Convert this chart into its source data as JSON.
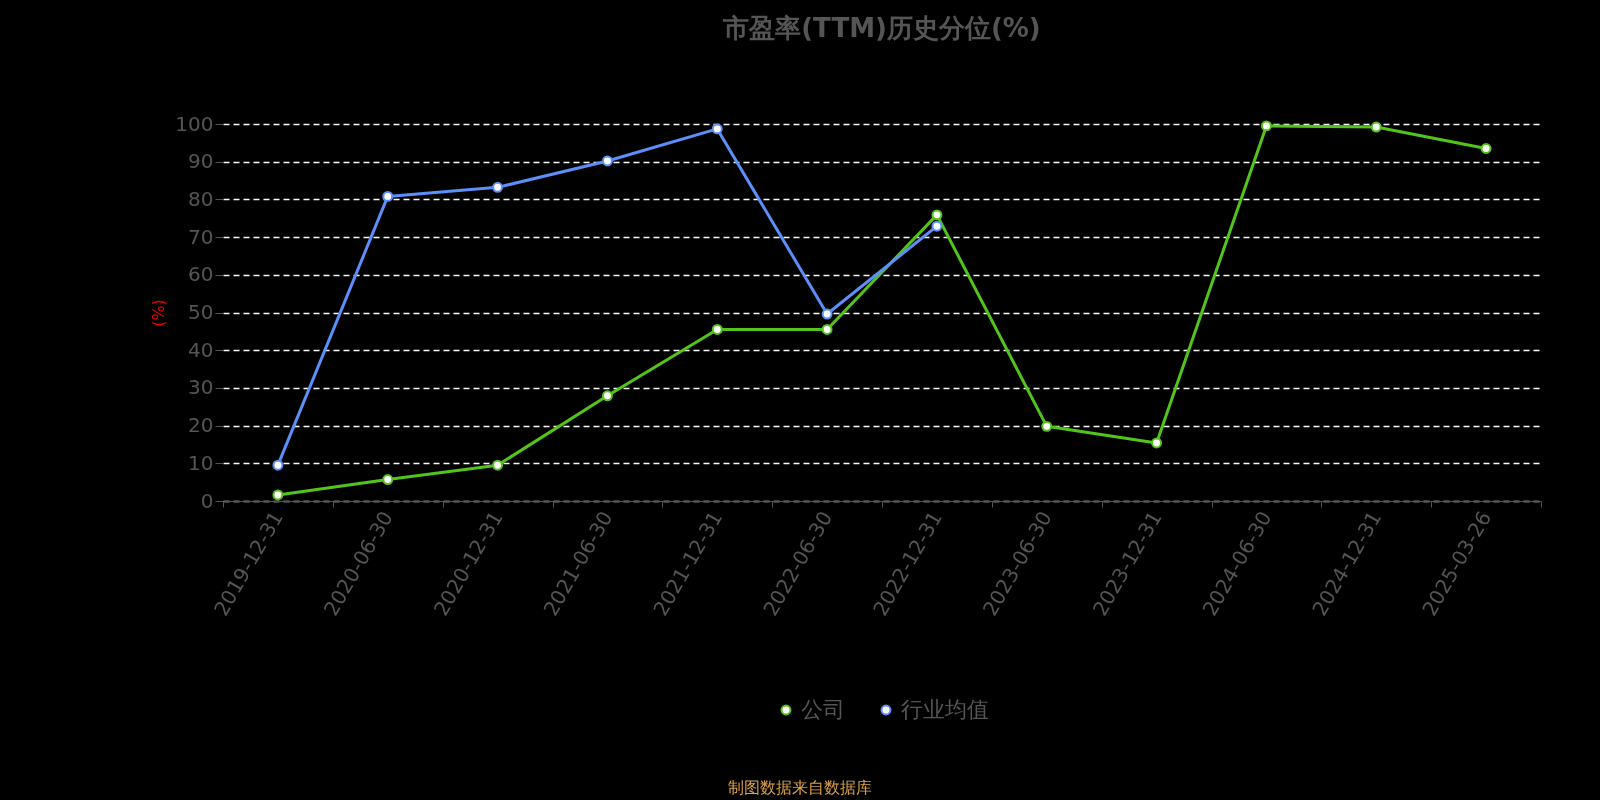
{
  "chart_data": {
    "type": "line",
    "title": "市盈率(TTM)历史分位(%)",
    "ylabel": "(%)",
    "categories": [
      "2019-12-31",
      "2020-06-30",
      "2020-12-31",
      "2021-06-30",
      "2021-12-31",
      "2022-06-30",
      "2022-12-31",
      "2023-06-30",
      "2023-12-31",
      "2024-06-30",
      "2024-12-31",
      "2025-03-26"
    ],
    "series": [
      {
        "name": "公司",
        "color": "#52c41a",
        "values": [
          1.6,
          5.7,
          9.5,
          27.9,
          45.5,
          45.5,
          75.9,
          19.8,
          15.4,
          99.5,
          99.2,
          93.5
        ]
      },
      {
        "name": "行业均值",
        "color": "#5b8ff9",
        "values": [
          9.5,
          80.8,
          83.2,
          90.2,
          98.7,
          49.6,
          72.9,
          null,
          null,
          null,
          null,
          null
        ]
      }
    ],
    "ylim": [
      0,
      100
    ],
    "yticks": [
      0,
      10,
      20,
      30,
      40,
      50,
      60,
      70,
      80,
      90,
      100
    ],
    "grid": "y",
    "legend": "bottom",
    "marker": "circle",
    "line_style": "solid",
    "annotations": [
      "制图数据来自数据库"
    ]
  }
}
